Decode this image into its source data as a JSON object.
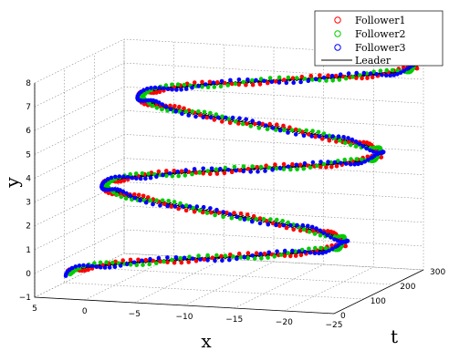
{
  "chart_data": {
    "type": "line",
    "title": "",
    "xlabel": "x",
    "ylabel": "y",
    "tlabel": "t",
    "xlim": [
      -25,
      5
    ],
    "ylim": [
      -1,
      8
    ],
    "tlim": [
      0,
      300
    ],
    "x_ticks": [
      5,
      0,
      -5,
      -10,
      -15,
      -20,
      -25
    ],
    "y_ticks": [
      -1,
      0,
      1,
      2,
      3,
      4,
      5,
      6,
      7,
      8
    ],
    "t_ticks": [
      0,
      100,
      200,
      300
    ],
    "grid": true,
    "legend_position": "top-right",
    "legend": [
      {
        "label": "Follower1",
        "marker": "circle",
        "color": "#ff0000"
      },
      {
        "label": "Follower2",
        "marker": "circle",
        "color": "#00cc00"
      },
      {
        "label": "Follower3",
        "marker": "circle",
        "color": "#0000ff"
      },
      {
        "label": "Leader",
        "marker": "line",
        "color": "#000000"
      }
    ],
    "series": [
      {
        "name": "Leader",
        "color": "#000000",
        "t": [
          0,
          300
        ],
        "x": [
          -11,
          -11
        ],
        "x_amplitude": 13,
        "y": [
          0,
          7.5
        ],
        "turns": 2.5
      },
      {
        "name": "Follower1",
        "color": "#ff0000"
      },
      {
        "name": "Follower2",
        "color": "#00cc00"
      },
      {
        "name": "Follower3",
        "color": "#0000ff"
      }
    ]
  }
}
